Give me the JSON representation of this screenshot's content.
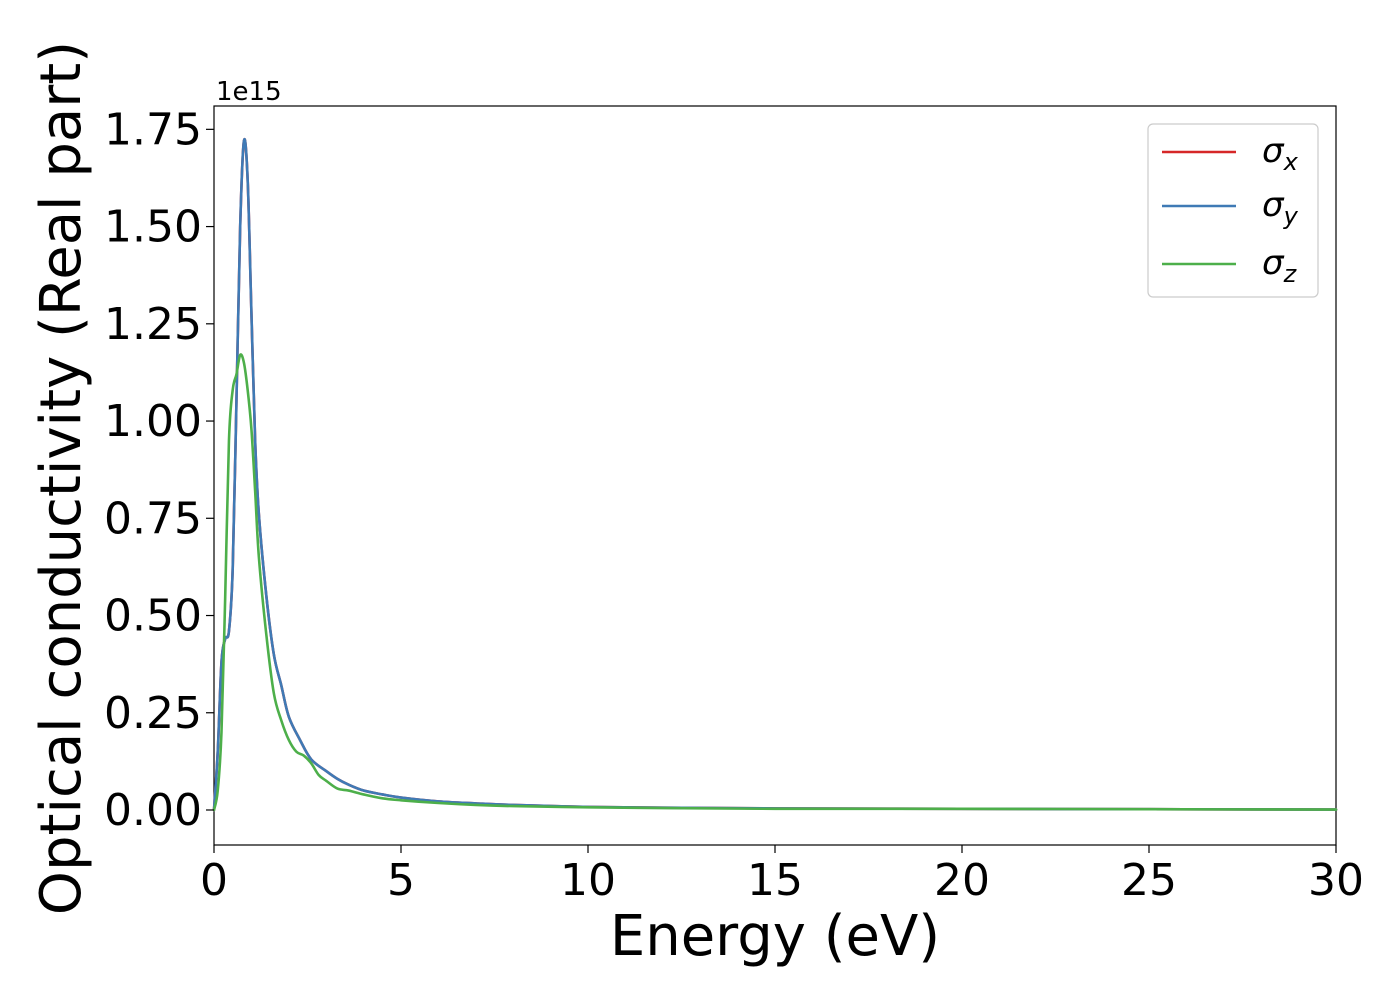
{
  "chart_data": {
    "type": "line",
    "title": "",
    "xlabel": "Energy (eV)",
    "ylabel": "Optical conductivity (Real part)",
    "y_offset_text": "1e15",
    "xlim": [
      0,
      30
    ],
    "ylim": [
      -0.09,
      1.81
    ],
    "xticks": [
      0,
      5,
      10,
      15,
      20,
      25,
      30
    ],
    "xtick_labels": [
      "0",
      "5",
      "10",
      "15",
      "20",
      "25",
      "30"
    ],
    "yticks": [
      0.0,
      0.25,
      0.5,
      0.75,
      1.0,
      1.25,
      1.5,
      1.75
    ],
    "ytick_labels": [
      "0.00",
      "0.25",
      "0.50",
      "0.75",
      "1.00",
      "1.25",
      "1.50",
      "1.75"
    ],
    "grid": false,
    "legend_position": "top-right",
    "series": [
      {
        "name": "σx",
        "symbol": "σ",
        "subscript": "x",
        "color": "#d62728",
        "x": [
          0,
          0.1,
          0.2,
          0.3,
          0.4,
          0.5,
          0.6,
          0.7,
          0.8,
          0.9,
          1.0,
          1.1,
          1.2,
          1.4,
          1.6,
          1.8,
          2.0,
          2.3,
          2.6,
          3.0,
          3.3,
          3.6,
          4.0,
          4.5,
          5.0,
          6.0,
          7.0,
          8.0,
          10.0,
          12.0,
          15.0,
          20.0,
          25.0,
          30.0
        ],
        "y": [
          0.0,
          0.15,
          0.38,
          0.44,
          0.46,
          0.62,
          1.05,
          1.5,
          1.72,
          1.62,
          1.28,
          0.95,
          0.76,
          0.55,
          0.4,
          0.32,
          0.24,
          0.18,
          0.13,
          0.1,
          0.08,
          0.065,
          0.05,
          0.04,
          0.032,
          0.022,
          0.017,
          0.013,
          0.008,
          0.006,
          0.004,
          0.003,
          0.002,
          0.001
        ]
      },
      {
        "name": "σy",
        "symbol": "σ",
        "subscript": "y",
        "color": "#3f7ab5",
        "x": [
          0,
          0.1,
          0.2,
          0.3,
          0.4,
          0.5,
          0.6,
          0.7,
          0.8,
          0.9,
          1.0,
          1.1,
          1.2,
          1.4,
          1.6,
          1.8,
          2.0,
          2.3,
          2.6,
          3.0,
          3.3,
          3.6,
          4.0,
          4.5,
          5.0,
          6.0,
          7.0,
          8.0,
          10.0,
          12.0,
          15.0,
          20.0,
          25.0,
          30.0
        ],
        "y": [
          0.0,
          0.15,
          0.38,
          0.44,
          0.46,
          0.62,
          1.05,
          1.5,
          1.72,
          1.62,
          1.28,
          0.95,
          0.76,
          0.55,
          0.4,
          0.32,
          0.24,
          0.18,
          0.13,
          0.1,
          0.08,
          0.065,
          0.05,
          0.04,
          0.032,
          0.022,
          0.017,
          0.013,
          0.008,
          0.006,
          0.004,
          0.003,
          0.002,
          0.001
        ]
      },
      {
        "name": "σz",
        "symbol": "σ",
        "subscript": "z",
        "color": "#4daf4a",
        "x": [
          0,
          0.1,
          0.2,
          0.3,
          0.4,
          0.5,
          0.6,
          0.7,
          0.8,
          0.9,
          1.0,
          1.1,
          1.2,
          1.4,
          1.6,
          1.8,
          2.0,
          2.2,
          2.4,
          2.6,
          2.8,
          3.0,
          3.3,
          3.6,
          4.0,
          4.5,
          5.0,
          6.0,
          7.0,
          8.0,
          10.0,
          12.0,
          15.0,
          20.0,
          25.0,
          30.0
        ],
        "y": [
          0.0,
          0.05,
          0.2,
          0.55,
          0.95,
          1.08,
          1.12,
          1.17,
          1.15,
          1.08,
          0.98,
          0.82,
          0.65,
          0.45,
          0.3,
          0.23,
          0.18,
          0.15,
          0.14,
          0.12,
          0.09,
          0.075,
          0.055,
          0.05,
          0.04,
          0.03,
          0.025,
          0.018,
          0.013,
          0.01,
          0.007,
          0.005,
          0.003,
          0.003,
          0.002,
          0.001
        ]
      }
    ]
  }
}
